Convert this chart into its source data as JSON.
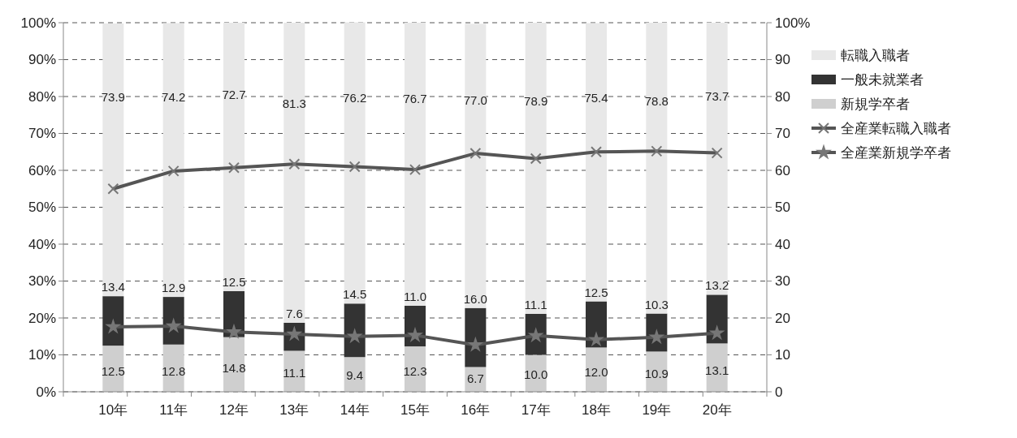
{
  "chart_data": {
    "type": "bar",
    "stacked": true,
    "categories": [
      "10年",
      "11年",
      "12年",
      "13年",
      "14年",
      "15年",
      "16年",
      "17年",
      "18年",
      "19年",
      "20年"
    ],
    "series": [
      {
        "name": "新規学卒者",
        "color": "#cfcfcf",
        "values": [
          12.5,
          12.8,
          14.8,
          11.1,
          9.4,
          12.3,
          6.7,
          10.0,
          12.0,
          10.9,
          13.1
        ],
        "value_labels": [
          "12.5",
          "12.8",
          "14.8",
          "11.1",
          "9.4",
          "12.3",
          "6.7",
          "10.0",
          "12.0",
          "10.9",
          "13.1"
        ]
      },
      {
        "name": "一般未就業者",
        "color": "#333333",
        "values": [
          13.4,
          12.9,
          12.5,
          7.6,
          14.5,
          11.0,
          16.0,
          11.1,
          12.5,
          10.3,
          13.2
        ],
        "value_labels": [
          "13.4",
          "12.9",
          "12.5",
          "7.6",
          "14.5",
          "11.0",
          "16.0",
          "11.1",
          "12.5",
          "10.3",
          "13.2"
        ]
      },
      {
        "name": "転職入職者",
        "color": "#e8e8e8",
        "values": [
          73.9,
          74.2,
          72.7,
          81.3,
          76.2,
          76.7,
          77.0,
          78.9,
          75.4,
          78.8,
          73.7
        ],
        "value_labels": [
          "73.9",
          "74.2",
          "72.7",
          "81.3",
          "76.2",
          "76.7",
          "77.0",
          "78.9",
          "75.4",
          "78.8",
          "73.7"
        ]
      },
      {
        "name": "全産業転職入職者",
        "type": "line",
        "marker": "cross",
        "color": "#555555",
        "values": [
          55.0,
          59.8,
          60.7,
          61.7,
          61.0,
          60.2,
          64.6,
          63.2,
          65.0,
          65.2,
          64.7
        ]
      },
      {
        "name": "全産業新規学卒者",
        "type": "line",
        "marker": "star",
        "color": "#555555",
        "values": [
          17.6,
          17.8,
          16.2,
          15.6,
          15.0,
          15.3,
          12.7,
          15.2,
          14.1,
          14.8,
          15.9
        ]
      }
    ],
    "ylim": [
      0,
      100
    ],
    "yticks": [
      {
        "value": 0,
        "label": "0%"
      },
      {
        "value": 10,
        "label": "10%"
      },
      {
        "value": 20,
        "label": "20%"
      },
      {
        "value": 30,
        "label": "30%"
      },
      {
        "value": 40,
        "label": "40%"
      },
      {
        "value": 50,
        "label": "50%"
      },
      {
        "value": 60,
        "label": "60%"
      },
      {
        "value": 70,
        "label": "70%"
      },
      {
        "value": 80,
        "label": "80%"
      },
      {
        "value": 90,
        "label": "90%"
      },
      {
        "value": 100,
        "label": "100%"
      }
    ],
    "y2lim": [
      0,
      100
    ],
    "y2ticks": [
      0,
      10,
      20,
      30,
      40,
      50,
      60,
      70,
      80,
      90,
      {
        "value": 100,
        "label": "100%"
      }
    ],
    "grid": "y",
    "line_style": "solid",
    "legend": "right"
  }
}
